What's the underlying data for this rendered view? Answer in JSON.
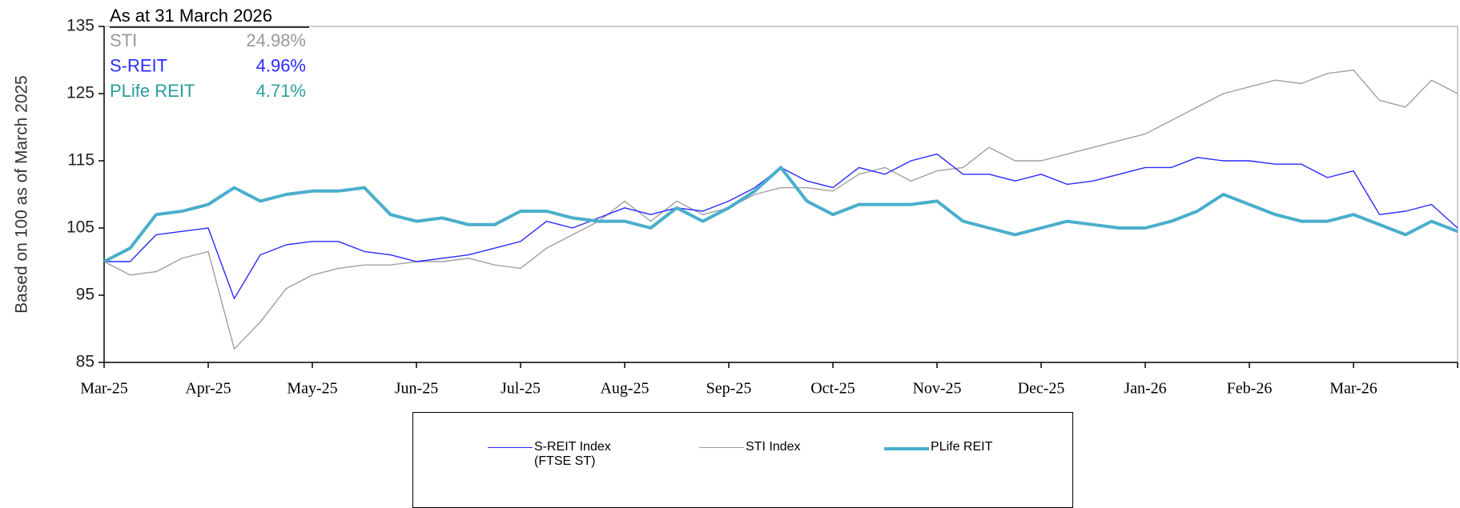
{
  "chart_data": {
    "type": "line",
    "y_label": "Based on 100 as of March 2025",
    "ylim": [
      85,
      135
    ],
    "yticks": [
      85,
      95,
      105,
      115,
      125,
      135
    ],
    "categories": [
      "Mar-25",
      null,
      null,
      null,
      "Apr-25",
      null,
      null,
      null,
      "May-25",
      null,
      null,
      null,
      "Jun-25",
      null,
      null,
      null,
      "Jul-25",
      null,
      null,
      null,
      "Aug-25",
      null,
      null,
      null,
      "Sep-25",
      null,
      null,
      null,
      "Oct-25",
      null,
      null,
      null,
      "Nov-25",
      null,
      null,
      null,
      "Dec-25",
      null,
      null,
      null,
      "Jan-26",
      null,
      null,
      null,
      "Feb-26",
      null,
      null,
      null,
      "Mar-26",
      null,
      null,
      null,
      null
    ],
    "series": [
      {
        "name": "S-REIT Index (FTSE ST)",
        "color": "#2a2aff",
        "width": 1.4,
        "values": [
          100,
          100,
          104,
          104.5,
          105,
          94.5,
          101,
          102.5,
          103,
          103,
          101.5,
          101,
          100,
          100.5,
          101,
          102,
          103,
          106,
          105,
          106.5,
          108,
          107,
          108,
          107.5,
          109,
          111,
          114,
          112,
          111,
          114,
          113,
          115,
          116,
          113,
          113,
          112,
          113,
          111.5,
          112,
          113,
          114,
          114,
          115.5,
          115,
          115,
          114.5,
          114.5,
          112.5,
          113.5,
          107,
          107.5,
          108.5,
          105
        ]
      },
      {
        "name": "STI Index",
        "color": "#a0a0a0",
        "width": 1.4,
        "values": [
          100,
          98,
          98.5,
          100.5,
          101.5,
          87,
          91,
          96,
          98,
          99,
          99.5,
          99.5,
          100,
          100,
          100.5,
          99.5,
          99,
          102,
          104,
          106,
          109,
          106,
          109,
          107,
          108,
          110,
          111,
          111,
          110.5,
          113,
          114,
          112,
          113.5,
          114,
          117,
          115,
          115,
          116,
          117,
          118,
          119,
          121,
          123,
          125,
          126,
          127,
          126.5,
          128,
          128.5,
          124,
          123,
          127,
          125
        ]
      },
      {
        "name": "PLife REIT",
        "color": "#4aaecc",
        "width": 4,
        "values": [
          100,
          102,
          107,
          107.5,
          108.5,
          111,
          109,
          110,
          110.5,
          110.5,
          111,
          107,
          106,
          106.5,
          105.5,
          105.5,
          107.5,
          107.5,
          106.5,
          106,
          106,
          105,
          108,
          106,
          108,
          110.5,
          114,
          109,
          107,
          108.5,
          108.5,
          108.5,
          109,
          106,
          105,
          104,
          105,
          106,
          105.5,
          105,
          105,
          106,
          107.5,
          110,
          108.5,
          107,
          106,
          106,
          107,
          105.5,
          104,
          106,
          104.5
        ]
      }
    ],
    "annotation": {
      "title": "As at 31 March 2026",
      "rows": [
        {
          "name": "STI",
          "text": "24.98%",
          "color": "#999999"
        },
        {
          "name": "S-REIT",
          "text": "4.96%",
          "color": "#2a2aff"
        },
        {
          "name": "PLife REIT",
          "text": "4.71%",
          "color": "#2a9d9d"
        }
      ]
    }
  }
}
